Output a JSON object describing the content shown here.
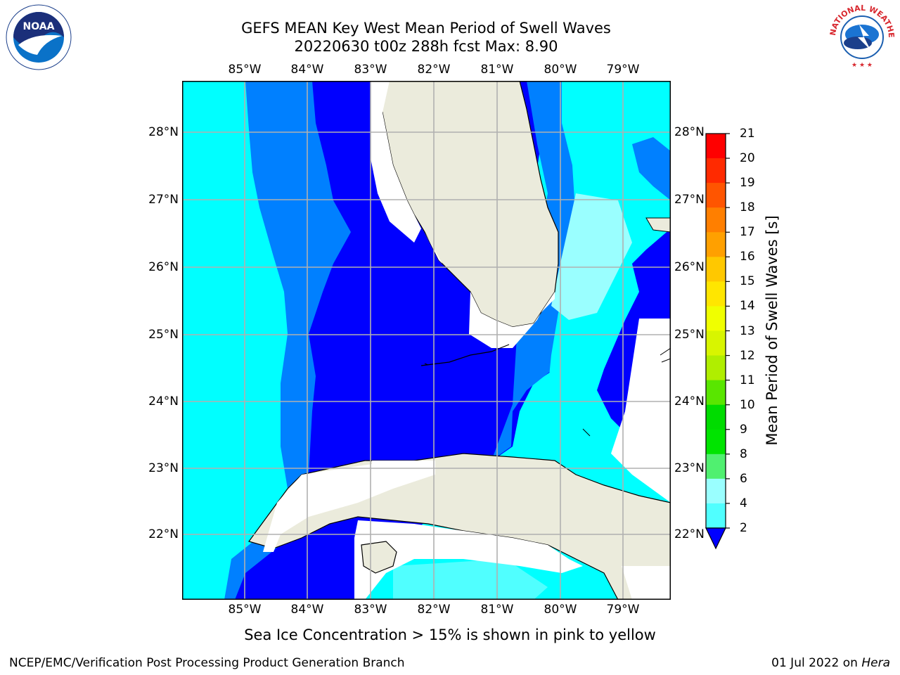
{
  "title": {
    "line1": "GEFS MEAN Key West Mean Period of Swell Waves",
    "line2": "20220630 t00z 288h fcst   Max: 8.90"
  },
  "lon_labels": [
    "85°W",
    "84°W",
    "83°W",
    "82°W",
    "81°W",
    "80°W",
    "79°W"
  ],
  "lat_labels": [
    "28°N",
    "27°N",
    "26°N",
    "25°N",
    "24°N",
    "23°N",
    "22°N"
  ],
  "colorbar": {
    "label": "Mean Period of Swell Waves [s]",
    "ticks": [
      "21",
      "20",
      "19",
      "18",
      "17",
      "16",
      "15",
      "14",
      "13",
      "12",
      "11",
      "10",
      "9",
      "8",
      "6",
      "4",
      "2"
    ],
    "colors": [
      "#ff0000",
      "#ff2a00",
      "#ff5500",
      "#ff7f00",
      "#ffa000",
      "#ffc800",
      "#ffe600",
      "#f0ff00",
      "#d8f500",
      "#b0ee00",
      "#59e600",
      "#00dc00",
      "#00e400",
      "#50f070",
      "#9affff",
      "#50ffff",
      "#00f0ff",
      "#0080ff"
    ]
  },
  "caption": "Sea Ice Concentration > 15% is shown in pink to yellow",
  "footer": {
    "left": "NCEP/EMC/Verification Post Processing Product Generation Branch",
    "date": "01 Jul 2022 on",
    "host": "Hera"
  },
  "logos": {
    "noaa": "NOAA",
    "nws": "NATIONAL WEATHER SERVICE"
  },
  "colors": {
    "land": "#ebebdc",
    "swell_2_4": "#0000ff",
    "swell_4_6": "#0080ff",
    "swell_6_8": "#00ffff",
    "swell_8_9": "#9affff",
    "grid": "#b0b0b0"
  }
}
